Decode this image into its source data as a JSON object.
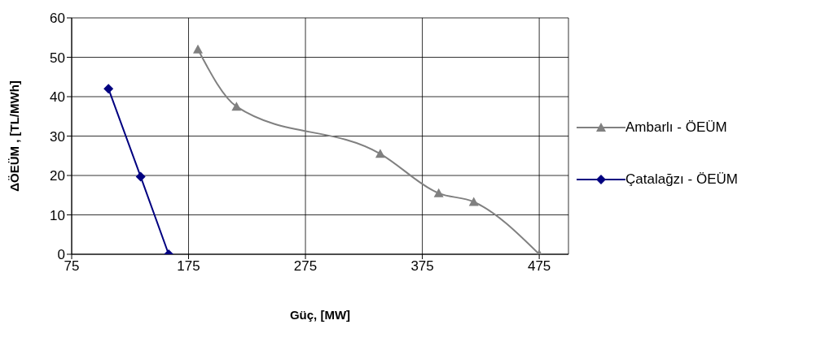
{
  "chart_data": {
    "type": "line",
    "xlabel": "Güç, [MW]",
    "ylabel": "ΔÖEÜM , [TL/MWh]",
    "xlim": [
      75,
      500
    ],
    "xticks": [
      75,
      175,
      275,
      375,
      475
    ],
    "ylim": [
      0,
      60
    ],
    "yticks": [
      0,
      10,
      20,
      30,
      40,
      50,
      60
    ],
    "grid": true,
    "legend": "right",
    "series": [
      {
        "name": "Ambarlı - ÖEÜM",
        "color": "#808080",
        "marker": "triangle",
        "x": [
          183,
          216,
          339,
          389,
          419,
          475
        ],
        "values": [
          52,
          37.5,
          25.5,
          15.5,
          13.3,
          0
        ]
      },
      {
        "name": "Çatalağzı - ÖEÜM",
        "color": "#000080",
        "marker": "diamond",
        "x": [
          106.5,
          134,
          158
        ],
        "values": [
          42,
          19.7,
          0
        ]
      }
    ]
  }
}
